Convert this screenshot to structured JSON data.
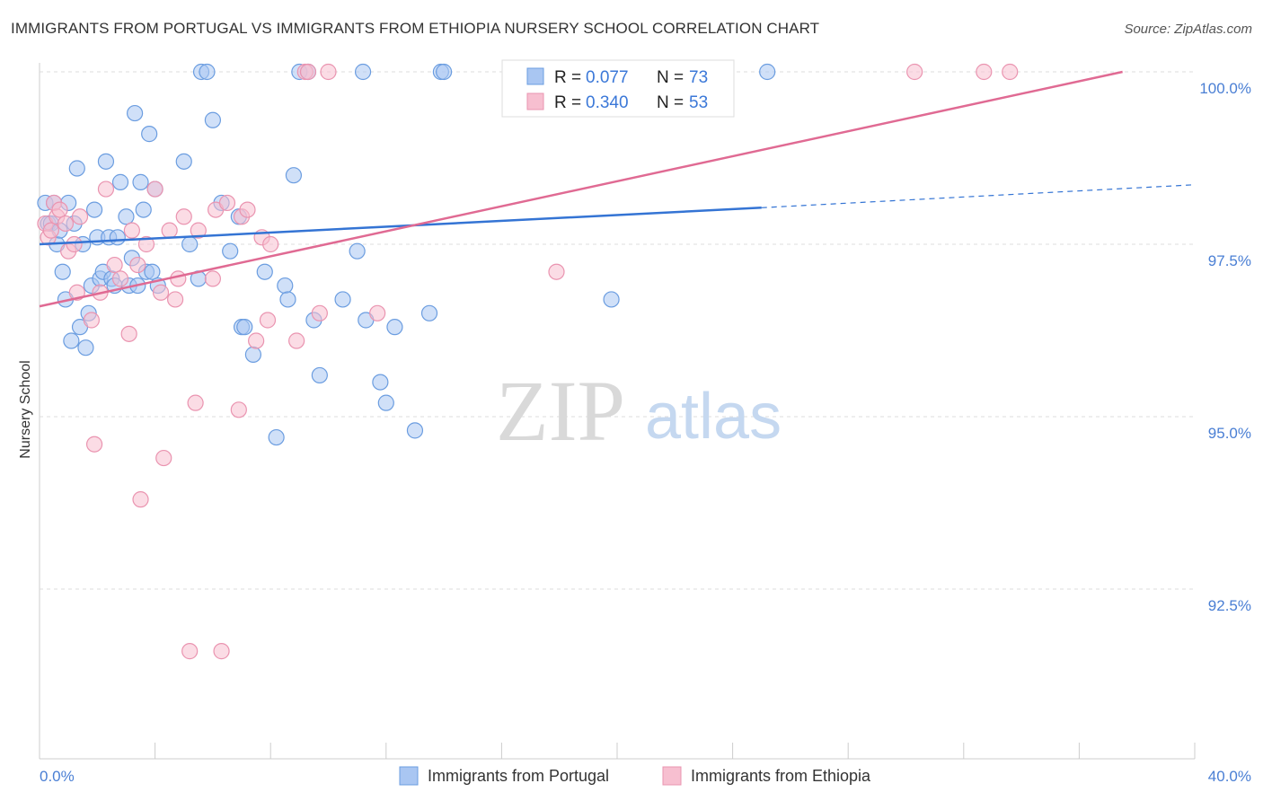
{
  "header": {
    "title": "IMMIGRANTS FROM PORTUGAL VS IMMIGRANTS FROM ETHIOPIA NURSERY SCHOOL CORRELATION CHART",
    "source": "Source: ZipAtlas.com"
  },
  "watermark": {
    "zip": "ZIP",
    "atlas": "atlas"
  },
  "legend": {
    "rows": [
      {
        "r_label": "R =",
        "r_value": "0.077",
        "n_label": "N =",
        "n_value": "73"
      },
      {
        "r_label": "R =",
        "r_value": "0.340",
        "n_label": "N =",
        "n_value": "53"
      }
    ]
  },
  "colors": {
    "portugal_fill": "#a9c6f2",
    "portugal_stroke": "#6b9de0",
    "portugal_line": "#3474d4",
    "ethiopia_fill": "#f7bfd0",
    "ethiopia_stroke": "#ea94b0",
    "ethiopia_line": "#e06a93",
    "grid": "#dddddd",
    "tick_text": "#4a7fd4"
  },
  "chart_data": {
    "type": "scatter",
    "title": "IMMIGRANTS FROM PORTUGAL VS IMMIGRANTS FROM ETHIOPIA NURSERY SCHOOL CORRELATION CHART",
    "xlabel": "",
    "ylabel": "Nursery School",
    "xlim": [
      0,
      40
    ],
    "ylim": [
      90.2,
      100.2
    ],
    "x_tick_labels": [
      "0.0%",
      "40.0%"
    ],
    "y_ticks": [
      {
        "value": 100.0,
        "label": "100.0%"
      },
      {
        "value": 97.5,
        "label": "97.5%"
      },
      {
        "value": 95.0,
        "label": "95.0%"
      },
      {
        "value": 92.5,
        "label": "92.5%"
      }
    ],
    "grid": true,
    "legend_position": "top-center",
    "series": [
      {
        "name": "Immigrants from Portugal",
        "r": 0.077,
        "n": 73,
        "trend": {
          "x0": 0,
          "y0": 97.5,
          "x1": 25,
          "y1": 98.03,
          "dash_to_x": 40,
          "dash_to_y": 98.36
        },
        "points": [
          [
            0.2,
            98.1
          ],
          [
            0.3,
            97.8
          ],
          [
            0.4,
            97.8
          ],
          [
            0.5,
            98.1
          ],
          [
            0.6,
            97.5
          ],
          [
            0.7,
            97.7
          ],
          [
            0.8,
            97.1
          ],
          [
            0.9,
            96.7
          ],
          [
            1.0,
            98.1
          ],
          [
            1.1,
            96.1
          ],
          [
            1.2,
            97.8
          ],
          [
            1.3,
            98.6
          ],
          [
            1.4,
            96.3
          ],
          [
            1.5,
            97.5
          ],
          [
            1.6,
            96.0
          ],
          [
            1.7,
            96.5
          ],
          [
            1.8,
            96.9
          ],
          [
            1.9,
            98.0
          ],
          [
            2.0,
            97.6
          ],
          [
            2.1,
            97.0
          ],
          [
            2.2,
            97.1
          ],
          [
            2.3,
            98.7
          ],
          [
            2.4,
            97.6
          ],
          [
            2.5,
            97.0
          ],
          [
            2.6,
            96.9
          ],
          [
            2.7,
            97.6
          ],
          [
            2.8,
            98.4
          ],
          [
            3.0,
            97.9
          ],
          [
            3.1,
            96.9
          ],
          [
            3.2,
            97.3
          ],
          [
            3.3,
            99.4
          ],
          [
            3.4,
            96.9
          ],
          [
            3.5,
            98.4
          ],
          [
            3.6,
            98.0
          ],
          [
            3.7,
            97.1
          ],
          [
            3.8,
            99.1
          ],
          [
            3.9,
            97.1
          ],
          [
            4.0,
            98.3
          ],
          [
            4.1,
            96.9
          ],
          [
            5.0,
            98.7
          ],
          [
            5.2,
            97.5
          ],
          [
            5.5,
            97.0
          ],
          [
            5.6,
            100.0
          ],
          [
            5.8,
            100.0
          ],
          [
            6.0,
            99.3
          ],
          [
            6.3,
            98.1
          ],
          [
            6.6,
            97.4
          ],
          [
            6.9,
            97.9
          ],
          [
            7.0,
            96.3
          ],
          [
            7.1,
            96.3
          ],
          [
            7.4,
            95.9
          ],
          [
            7.8,
            97.1
          ],
          [
            8.2,
            94.7
          ],
          [
            8.5,
            96.9
          ],
          [
            8.6,
            96.7
          ],
          [
            8.8,
            98.5
          ],
          [
            9.0,
            100.0
          ],
          [
            9.3,
            100.0
          ],
          [
            9.5,
            96.4
          ],
          [
            9.7,
            95.6
          ],
          [
            10.5,
            96.7
          ],
          [
            11.0,
            97.4
          ],
          [
            11.2,
            100.0
          ],
          [
            11.3,
            96.4
          ],
          [
            11.8,
            95.5
          ],
          [
            12.0,
            95.2
          ],
          [
            12.3,
            96.3
          ],
          [
            13.0,
            94.8
          ],
          [
            13.5,
            96.5
          ],
          [
            13.9,
            100.0
          ],
          [
            14.0,
            100.0
          ],
          [
            19.8,
            96.7
          ],
          [
            25.2,
            100.0
          ]
        ]
      },
      {
        "name": "Immigrants from Ethiopia",
        "r": 0.34,
        "n": 53,
        "trend": {
          "x0": 0,
          "y0": 96.6,
          "x1": 37.5,
          "y1": 100.0
        },
        "points": [
          [
            0.2,
            97.8
          ],
          [
            0.3,
            97.6
          ],
          [
            0.4,
            97.7
          ],
          [
            0.5,
            98.1
          ],
          [
            0.6,
            97.9
          ],
          [
            0.7,
            98.0
          ],
          [
            0.9,
            97.8
          ],
          [
            1.0,
            97.4
          ],
          [
            1.2,
            97.5
          ],
          [
            1.3,
            96.8
          ],
          [
            1.4,
            97.9
          ],
          [
            1.8,
            96.4
          ],
          [
            1.9,
            94.6
          ],
          [
            2.1,
            96.8
          ],
          [
            2.3,
            98.3
          ],
          [
            2.6,
            97.2
          ],
          [
            2.8,
            97.0
          ],
          [
            3.1,
            96.2
          ],
          [
            3.2,
            97.7
          ],
          [
            3.4,
            97.2
          ],
          [
            3.5,
            93.8
          ],
          [
            3.7,
            97.5
          ],
          [
            4.0,
            98.3
          ],
          [
            4.2,
            96.8
          ],
          [
            4.3,
            94.4
          ],
          [
            4.5,
            97.7
          ],
          [
            4.7,
            96.7
          ],
          [
            4.8,
            97.0
          ],
          [
            5.0,
            97.9
          ],
          [
            5.2,
            91.6
          ],
          [
            5.4,
            95.2
          ],
          [
            5.5,
            97.7
          ],
          [
            6.0,
            97.0
          ],
          [
            6.1,
            98.0
          ],
          [
            6.3,
            91.6
          ],
          [
            6.5,
            98.1
          ],
          [
            6.9,
            95.1
          ],
          [
            7.0,
            97.9
          ],
          [
            7.2,
            98.0
          ],
          [
            7.5,
            96.1
          ],
          [
            7.7,
            97.6
          ],
          [
            7.9,
            96.4
          ],
          [
            8.0,
            97.5
          ],
          [
            8.9,
            96.1
          ],
          [
            9.2,
            100.0
          ],
          [
            9.3,
            100.0
          ],
          [
            9.7,
            96.5
          ],
          [
            10.0,
            100.0
          ],
          [
            11.7,
            96.5
          ],
          [
            17.9,
            97.1
          ],
          [
            30.3,
            100.0
          ],
          [
            32.7,
            100.0
          ],
          [
            33.6,
            100.0
          ]
        ]
      }
    ]
  }
}
